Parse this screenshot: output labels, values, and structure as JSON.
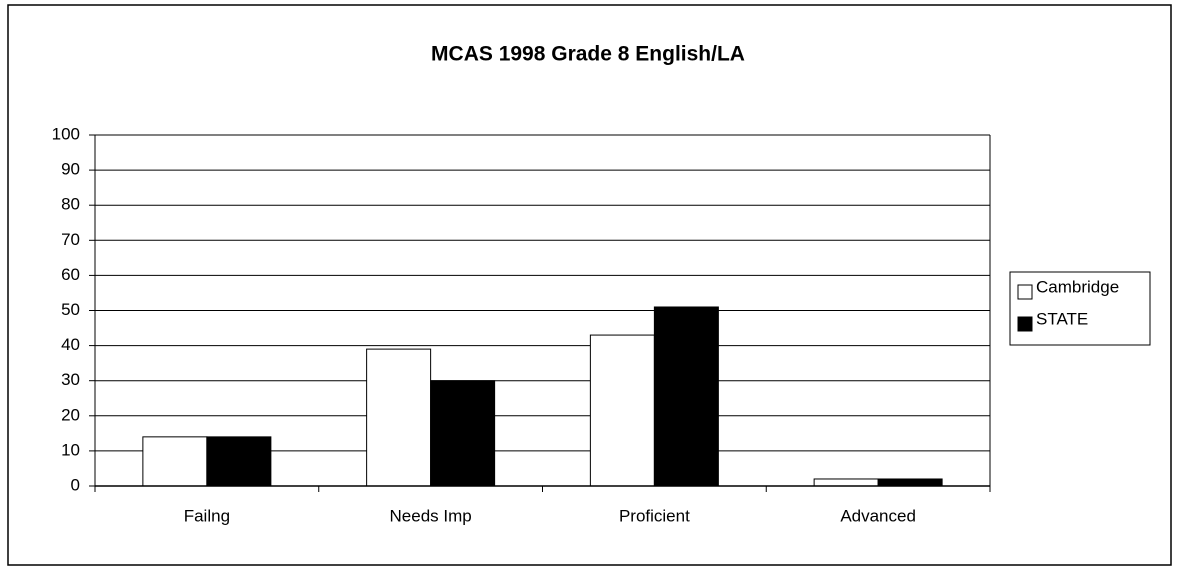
{
  "chart_data": {
    "type": "bar",
    "title": "MCAS 1998 Grade 8 English/LA",
    "categories": [
      "Failng",
      "Needs Imp",
      "Proficient",
      "Advanced"
    ],
    "series": [
      {
        "name": "Cambridge",
        "color": "#ffffff",
        "values": [
          14,
          39,
          43,
          2
        ]
      },
      {
        "name": "STATE",
        "color": "#000000",
        "values": [
          14,
          30,
          51,
          2
        ]
      }
    ],
    "ylim": [
      0,
      100
    ],
    "yticks": [
      0,
      10,
      20,
      30,
      40,
      50,
      60,
      70,
      80,
      90,
      100
    ],
    "grid": true,
    "legend": "right"
  }
}
